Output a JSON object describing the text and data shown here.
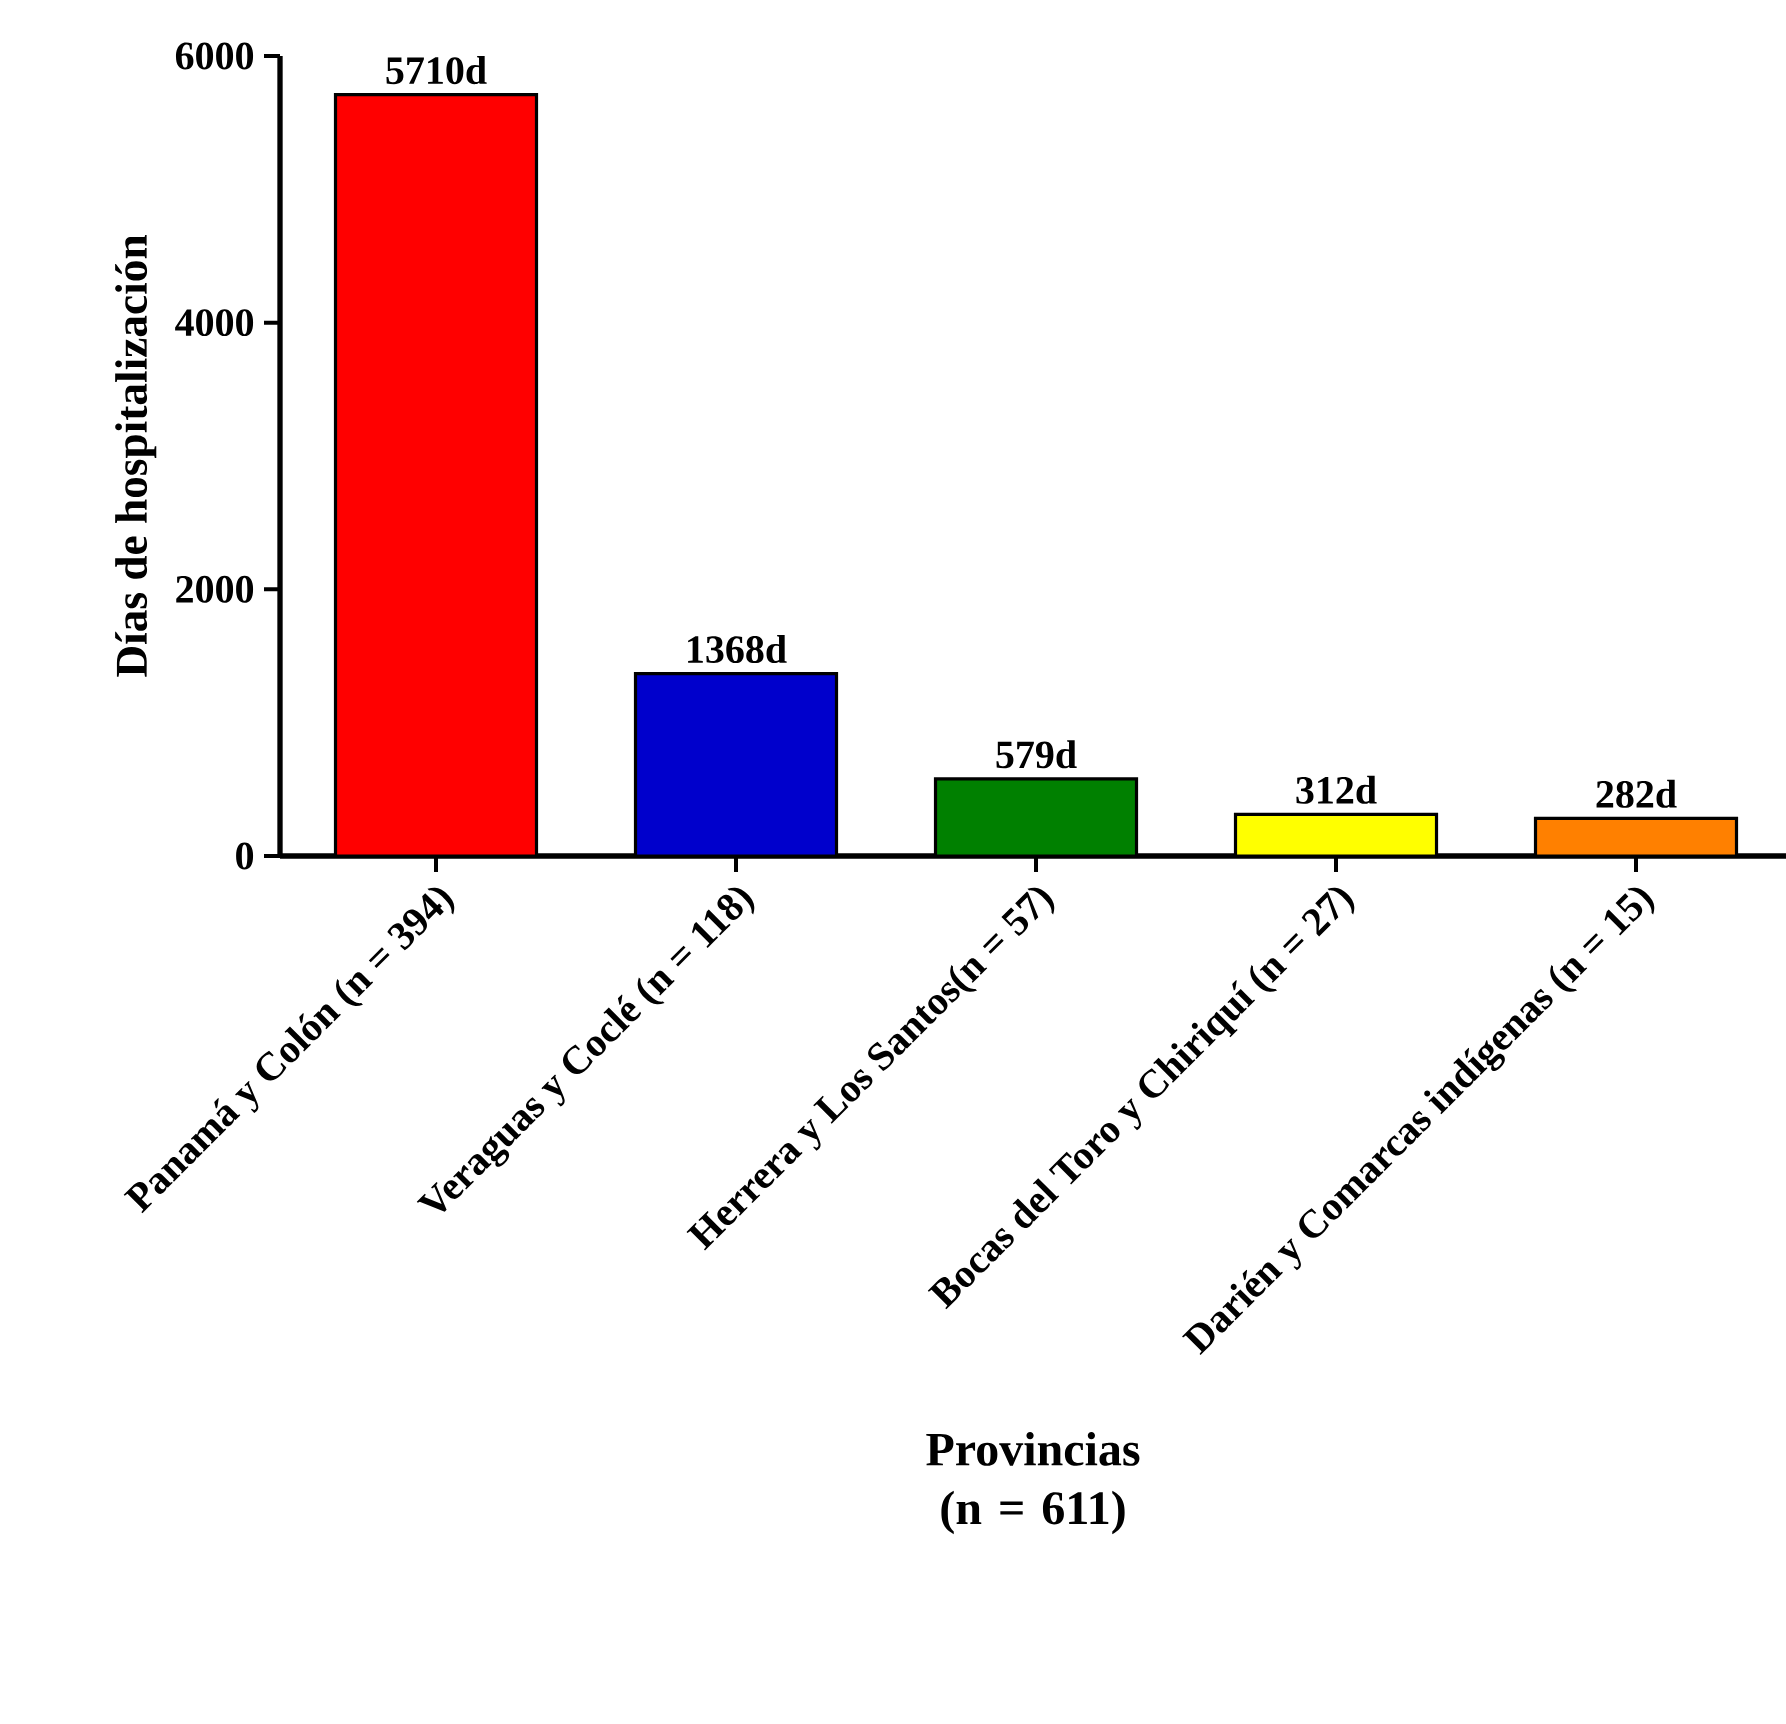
{
  "chart_data": {
    "type": "bar",
    "ylabel": "Días de hospitalización",
    "xlabel": "Provincias (n = 611)",
    "categories": [
      "Panamá y Colón (n = 394)",
      "Veraguas y Coclé (n = 118)",
      "Herrera y Los Santos(n = 57)",
      "Bocas del Toro y Chiriquí (n = 27)",
      "Darién y Comarcas indígenas (n = 15)"
    ],
    "values": [
      5710,
      1368,
      579,
      312,
      282
    ],
    "value_labels": [
      "5710d",
      "1368d",
      "579d",
      "312d",
      "282d"
    ],
    "colors": [
      "#ff0000",
      "#0000cc",
      "#008000",
      "#ffff00",
      "#ff8000"
    ],
    "ylim": [
      0,
      6000
    ],
    "yticks": [
      0,
      2000,
      4000,
      6000
    ]
  }
}
